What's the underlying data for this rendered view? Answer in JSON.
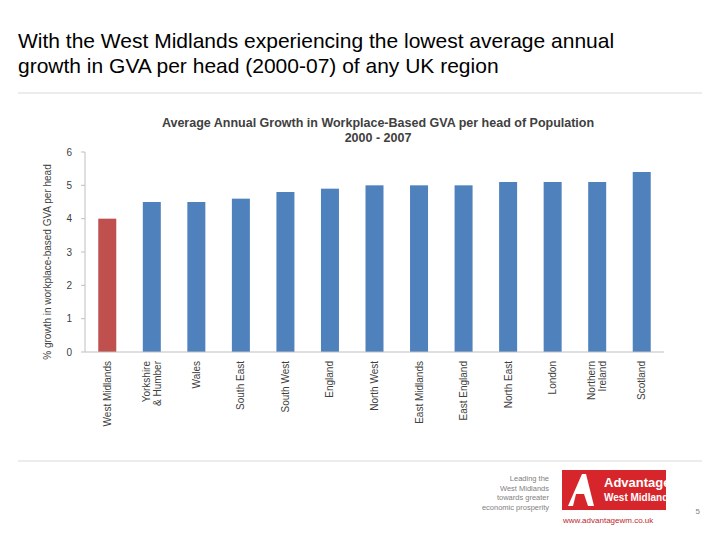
{
  "slide": {
    "heading": "With the West Midlands experiencing the lowest average annual growth in GVA per head (2000-07) of any UK region",
    "footer": {
      "tagline": [
        "Leading the",
        "West Midlands",
        "towards greater",
        "economic prosperity"
      ],
      "logo": [
        "Advantage",
        "West Midlands"
      ],
      "url": "www.advantagewm.co.uk",
      "page": "5"
    }
  },
  "chart_data": {
    "type": "bar",
    "title": "Average Annual Growth in Workplace-Based GVA per head of Population",
    "subtitle": "2000 - 2007",
    "y_label": "% growth in workplace-based GVA per head",
    "categories": [
      "West Midlands",
      "Yorkshire & Humber",
      "Wales",
      "South East",
      "South West",
      "England",
      "North West",
      "East Midlands",
      "East England",
      "North East",
      "London",
      "Northern Ireland",
      "Scotland"
    ],
    "values": [
      4.0,
      4.5,
      4.5,
      4.6,
      4.8,
      4.9,
      5.0,
      5.0,
      5.0,
      5.1,
      5.1,
      5.1,
      5.4
    ],
    "colors": [
      "#c0504d",
      "#4f81bd",
      "#4f81bd",
      "#4f81bd",
      "#4f81bd",
      "#4f81bd",
      "#4f81bd",
      "#4f81bd",
      "#4f81bd",
      "#4f81bd",
      "#4f81bd",
      "#4f81bd",
      "#4f81bd"
    ],
    "ylim": [
      0,
      6
    ],
    "yticks": [
      0,
      1,
      2,
      3,
      4,
      5,
      6
    ],
    "grid": false
  }
}
